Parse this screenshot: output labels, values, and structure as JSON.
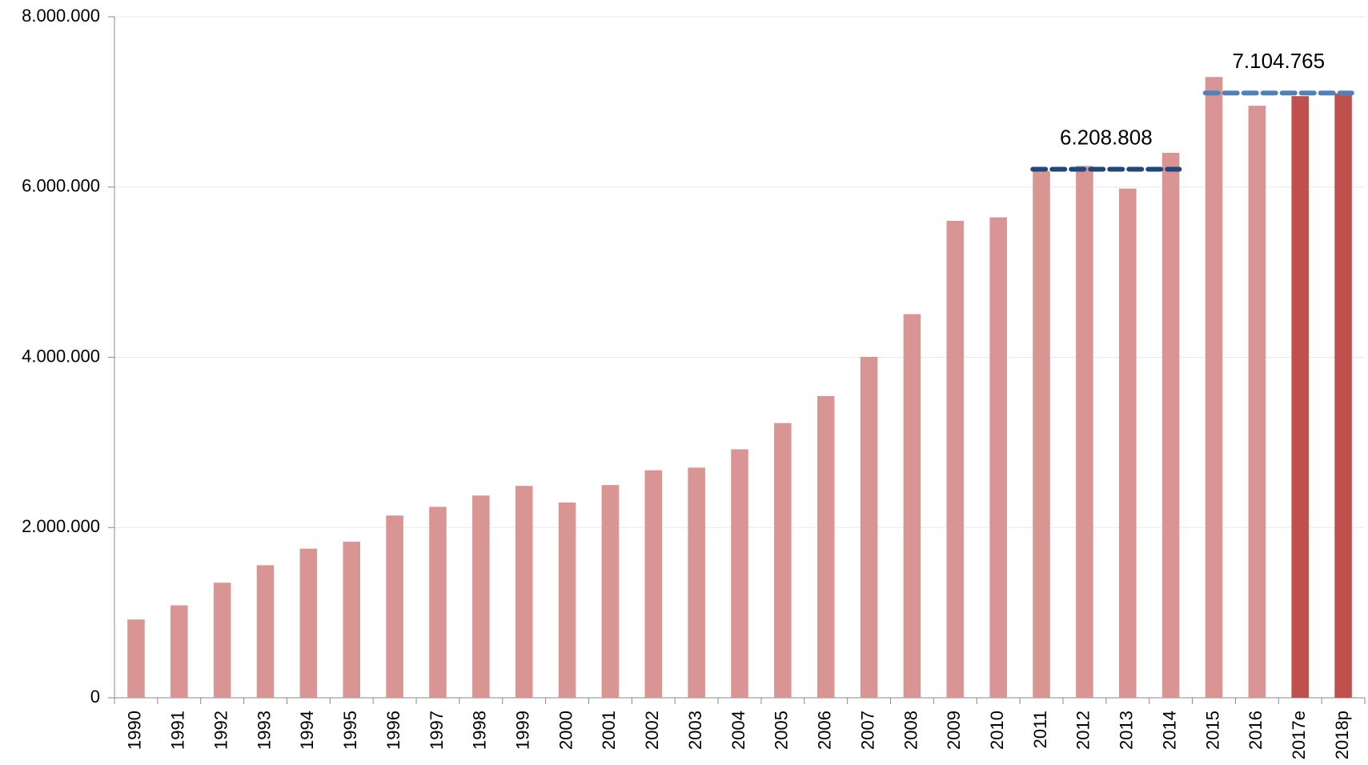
{
  "chart_data": {
    "type": "bar",
    "categories": [
      "1990",
      "1991",
      "1992",
      "1993",
      "1994",
      "1995",
      "1996",
      "1997",
      "1998",
      "1999",
      "2000",
      "2001",
      "2002",
      "2003",
      "2004",
      "2005",
      "2006",
      "2007",
      "2008",
      "2009",
      "2010",
      "2011",
      "2012",
      "2013",
      "2014",
      "2015",
      "2016",
      "2017e",
      "2018p"
    ],
    "values": [
      920000,
      1086000,
      1352000,
      1557000,
      1752000,
      1834000,
      2141000,
      2243000,
      2376000,
      2489000,
      2294000,
      2499000,
      2673000,
      2704000,
      2919000,
      3227000,
      3544000,
      4005000,
      4507000,
      5603000,
      5644000,
      6187000,
      6248000,
      5982000,
      6402000,
      7293000,
      6955000,
      7068000,
      7099000
    ],
    "colors": [
      "#d99594",
      "#d99594",
      "#d99594",
      "#d99594",
      "#d99594",
      "#d99594",
      "#d99594",
      "#d99594",
      "#d99594",
      "#d99594",
      "#d99594",
      "#d99594",
      "#d99594",
      "#d99594",
      "#d99594",
      "#d99594",
      "#d99594",
      "#d99594",
      "#d99594",
      "#d99594",
      "#d99594",
      "#d99594",
      "#d99594",
      "#d99594",
      "#d99594",
      "#d99594",
      "#d99594",
      "#c0504d",
      "#c0504d"
    ],
    "ylim": [
      0,
      8000000
    ],
    "yticks": [
      0,
      {
        "value": 2000000,
        "label": "2.000.000"
      },
      {
        "value": 4000000,
        "label": "4.000.000"
      },
      {
        "value": 6000000,
        "label": "6.000.000"
      },
      {
        "value": 8000000,
        "label": "8.000.000"
      }
    ],
    "grid": true,
    "reference_lines": [
      {
        "value": 6208808,
        "label": "6.208.808",
        "start": "2011",
        "end": "2014",
        "color": "#1f497d"
      },
      {
        "value": 7104765,
        "label": "7.104.765",
        "start": "2015",
        "end": "2018p",
        "color": "#4f81bd"
      }
    ]
  }
}
